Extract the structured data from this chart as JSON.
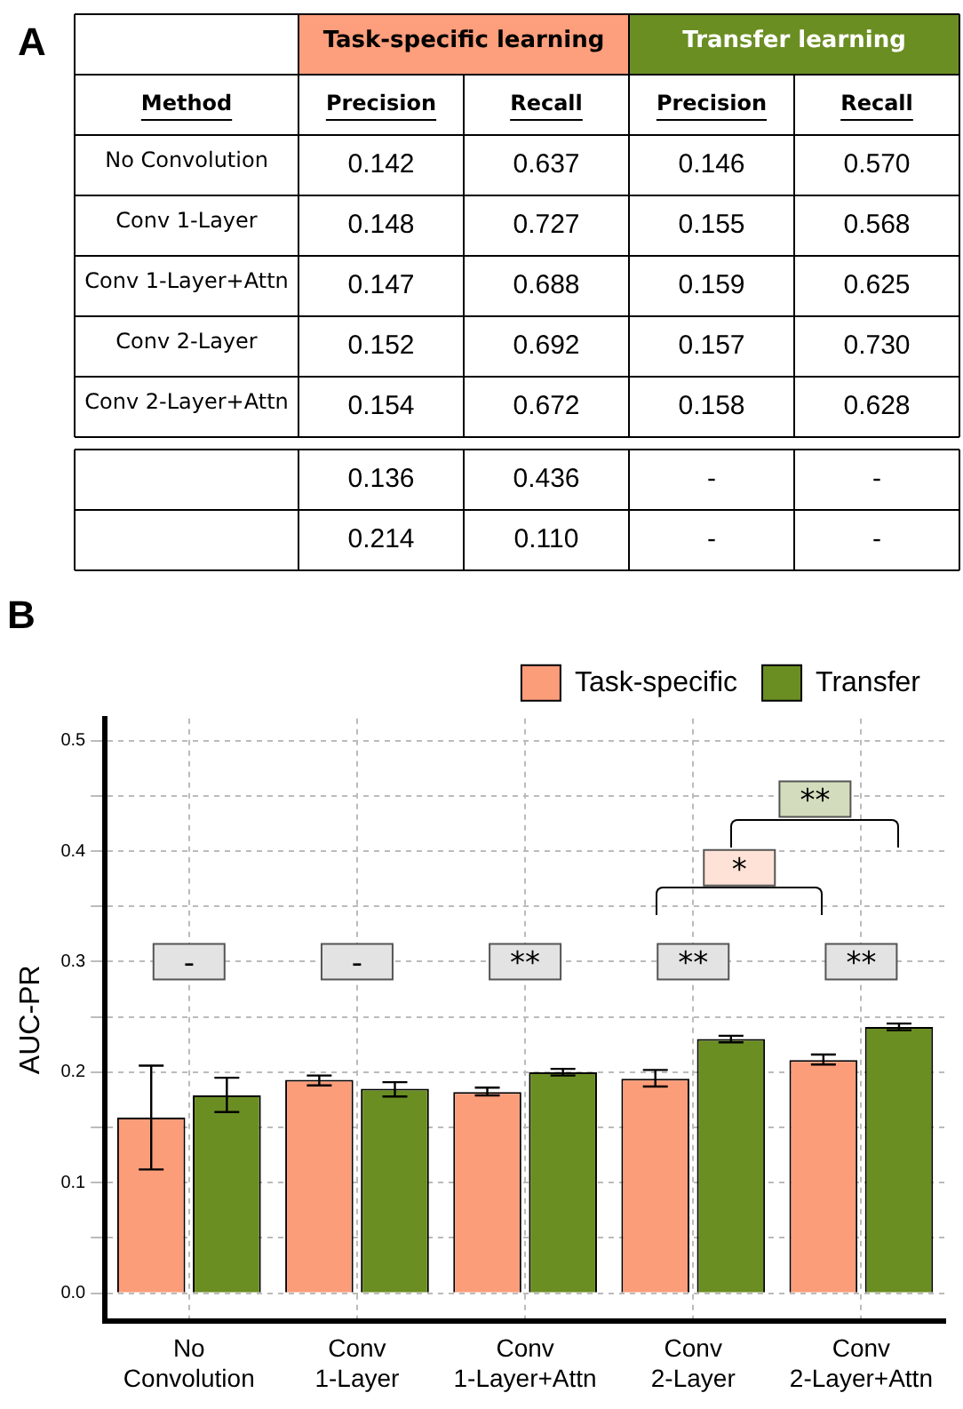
{
  "chart_data": [
    {
      "type": "heatmap",
      "title": "A",
      "ylabel": "Method",
      "annotations": [
        "Task-specific learning",
        "Transfer learning"
      ],
      "categories": [
        "Precision",
        "Recall",
        "Precision",
        "Recall"
      ],
      "y_categories": [
        "No Convolution",
        "Conv 1-Layer",
        "Conv 1-Layer+Attn",
        "Conv 2-Layer",
        "Conv 2-Layer+Attn",
        null,
        null
      ],
      "cells": [
        [
          0.142,
          0.637,
          0.146,
          0.57
        ],
        [
          0.148,
          0.727,
          0.155,
          0.568
        ],
        [
          0.147,
          0.688,
          0.159,
          0.625
        ],
        [
          0.152,
          0.692,
          0.157,
          0.73
        ],
        [
          0.154,
          0.672,
          0.158,
          0.628
        ],
        [
          0.136,
          0.436,
          null,
          null
        ],
        [
          0.214,
          0.11,
          null,
          null
        ]
      ],
      "cell_labels": [
        [
          "0.142",
          "0.637",
          "0.146",
          "0.570"
        ],
        [
          "0.148",
          "0.727",
          "0.155",
          "0.568"
        ],
        [
          "0.147",
          "0.688",
          "0.159",
          "0.625"
        ],
        [
          "0.152",
          "0.692",
          "0.157",
          "0.730"
        ],
        [
          "0.154",
          "0.672",
          "0.158",
          "0.628"
        ],
        [
          "0.136",
          "0.436",
          "-",
          "-"
        ],
        [
          "0.214",
          "0.110",
          "-",
          "-"
        ]
      ]
    },
    {
      "type": "bar",
      "title": "B",
      "ylabel": "AUC-PR",
      "grid": true,
      "legend": "top right",
      "categories": [
        "No Convolution",
        "Conv 1-Layer",
        "Conv 1-Layer+Attn",
        "Conv 2-Layer",
        "Conv 2-Layer+Attn"
      ],
      "series": [
        {
          "name": "Task-specific",
          "color": "#fc9d7a",
          "values": [
            0.159,
            0.193,
            0.182,
            0.194,
            0.211
          ],
          "errors": [
            [
              0.112,
              0.206
            ],
            [
              0.188,
              0.197
            ],
            [
              0.179,
              0.186
            ],
            [
              0.187,
              0.202
            ],
            [
              0.207,
              0.216
            ]
          ]
        },
        {
          "name": "Transfer",
          "color": "#6b8e23",
          "values": [
            0.179,
            0.185,
            0.2,
            0.23,
            0.241
          ],
          "errors": [
            [
              0.164,
              0.195
            ],
            [
              0.178,
              0.191
            ],
            [
              0.197,
              0.203
            ],
            [
              0.227,
              0.233
            ],
            [
              0.238,
              0.244
            ]
          ]
        }
      ],
      "ylim": [
        -0.025,
        0.52
      ],
      "yticks": [
        {
          "value": 0,
          "label": "0.0"
        },
        {
          "value": 0.05,
          "label": null
        },
        {
          "value": 0.1,
          "label": "0.1"
        },
        {
          "value": 0.15,
          "label": null
        },
        {
          "value": 0.2,
          "label": "0.2"
        },
        {
          "value": 0.25,
          "label": null
        },
        {
          "value": 0.3,
          "label": "0.3"
        },
        {
          "value": 0.35,
          "label": null
        },
        {
          "value": 0.4,
          "label": "0.4"
        },
        {
          "value": 0.45,
          "label": null
        },
        {
          "value": 0.5,
          "label": "0.5"
        }
      ],
      "annotations": [
        {
          "text": "-",
          "x": "No Convolution",
          "y": 0.3
        },
        {
          "text": "-",
          "x": "Conv 1-Layer",
          "y": 0.3
        },
        {
          "text": "**",
          "x": "Conv 1-Layer+Attn",
          "y": 0.3
        },
        {
          "text": "**",
          "x": "Conv 2-Layer",
          "y": 0.3
        },
        {
          "text": "**",
          "x": "Conv 2-Layer+Attn",
          "y": 0.3
        },
        {
          "text": "*",
          "y": 0.385
        },
        {
          "text": "**",
          "y": 0.447
        }
      ]
    }
  ]
}
